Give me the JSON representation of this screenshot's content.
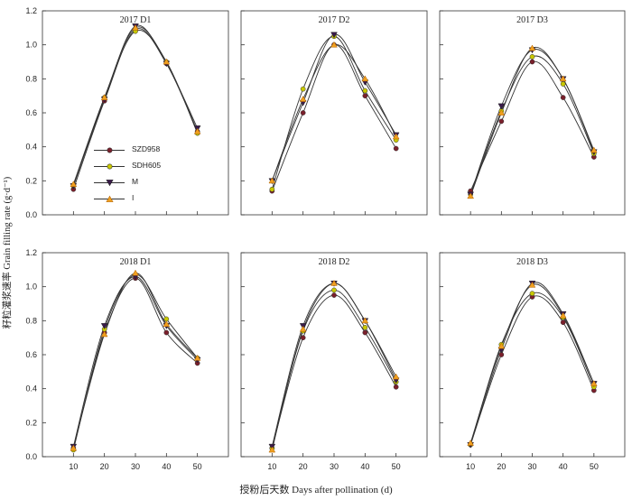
{
  "figure": {
    "ylabel": "籽粒灌浆速率 Grain filling rate (g·d⁻¹)",
    "xlabel": "授粉后天数 Days after pollination (d)"
  },
  "legend": {
    "items": [
      {
        "name": "SZD958",
        "marker": "circle",
        "color": "#7a1f2b"
      },
      {
        "name": "SDH605",
        "marker": "circle",
        "color": "#c8c800"
      },
      {
        "name": "M",
        "marker": "triangle-down",
        "color": "#3a1a4a"
      },
      {
        "name": "I",
        "marker": "triangle-up",
        "color": "#f0a020"
      }
    ]
  },
  "chart_data": [
    {
      "type": "line",
      "title": "2017 D1",
      "x": [
        10,
        20,
        30,
        40,
        50
      ],
      "ylim": [
        0,
        1.2
      ],
      "yticks": [
        0,
        0.2,
        0.4,
        0.6,
        0.8,
        1.0,
        1.2
      ],
      "series": [
        {
          "name": "SZD958",
          "values": [
            0.15,
            0.67,
            1.09,
            0.89,
            0.49
          ]
        },
        {
          "name": "SDH605",
          "values": [
            0.17,
            0.69,
            1.08,
            0.9,
            0.48
          ]
        },
        {
          "name": "M",
          "values": [
            0.17,
            0.68,
            1.11,
            0.89,
            0.51
          ]
        },
        {
          "name": "I",
          "values": [
            0.18,
            0.69,
            1.1,
            0.9,
            0.49
          ]
        }
      ]
    },
    {
      "type": "line",
      "title": "2017 D2",
      "x": [
        10,
        20,
        30,
        40,
        50
      ],
      "ylim": [
        0,
        1.2
      ],
      "yticks": [
        0,
        0.2,
        0.4,
        0.6,
        0.8,
        1.0,
        1.2
      ],
      "series": [
        {
          "name": "SZD958",
          "values": [
            0.14,
            0.6,
            1.0,
            0.7,
            0.39
          ]
        },
        {
          "name": "SDH605",
          "values": [
            0.15,
            0.74,
            1.05,
            0.73,
            0.44
          ]
        },
        {
          "name": "M",
          "values": [
            0.2,
            0.66,
            1.06,
            0.78,
            0.47
          ]
        },
        {
          "name": "I",
          "values": [
            0.2,
            0.68,
            1.0,
            0.8,
            0.46
          ]
        }
      ]
    },
    {
      "type": "line",
      "title": "2017 D3",
      "x": [
        10,
        20,
        30,
        40,
        50
      ],
      "ylim": [
        0,
        1.2
      ],
      "yticks": [
        0,
        0.2,
        0.4,
        0.6,
        0.8,
        1.0,
        1.2
      ],
      "series": [
        {
          "name": "SZD958",
          "values": [
            0.14,
            0.55,
            0.9,
            0.69,
            0.34
          ]
        },
        {
          "name": "SDH605",
          "values": [
            0.12,
            0.61,
            0.93,
            0.77,
            0.36
          ]
        },
        {
          "name": "M",
          "values": [
            0.12,
            0.64,
            0.97,
            0.8,
            0.37
          ]
        },
        {
          "name": "I",
          "values": [
            0.11,
            0.6,
            0.98,
            0.8,
            0.38
          ]
        }
      ]
    },
    {
      "type": "line",
      "title": "2018 D1",
      "x": [
        10,
        20,
        30,
        40,
        50
      ],
      "ylim": [
        0,
        1.2
      ],
      "yticks": [
        0,
        0.2,
        0.4,
        0.6,
        0.8,
        1.0,
        1.2
      ],
      "series": [
        {
          "name": "SZD958",
          "values": [
            0.05,
            0.73,
            1.05,
            0.73,
            0.55
          ]
        },
        {
          "name": "SDH605",
          "values": [
            0.04,
            0.75,
            1.07,
            0.81,
            0.58
          ]
        },
        {
          "name": "M",
          "values": [
            0.06,
            0.77,
            1.06,
            0.77,
            0.57
          ]
        },
        {
          "name": "I",
          "values": [
            0.05,
            0.72,
            1.08,
            0.78,
            0.58
          ]
        }
      ]
    },
    {
      "type": "line",
      "title": "2018 D2",
      "x": [
        10,
        20,
        30,
        40,
        50
      ],
      "ylim": [
        0,
        1.2
      ],
      "yticks": [
        0,
        0.2,
        0.4,
        0.6,
        0.8,
        1.0,
        1.2
      ],
      "series": [
        {
          "name": "SZD958",
          "values": [
            0.05,
            0.7,
            0.95,
            0.73,
            0.41
          ]
        },
        {
          "name": "SDH605",
          "values": [
            0.05,
            0.74,
            0.98,
            0.76,
            0.44
          ]
        },
        {
          "name": "M",
          "values": [
            0.06,
            0.77,
            1.02,
            0.8,
            0.45
          ]
        },
        {
          "name": "I",
          "values": [
            0.04,
            0.75,
            1.02,
            0.8,
            0.47
          ]
        }
      ]
    },
    {
      "type": "line",
      "title": "2018 D3",
      "x": [
        10,
        20,
        30,
        40,
        50
      ],
      "ylim": [
        0,
        1.2
      ],
      "yticks": [
        0,
        0.2,
        0.4,
        0.6,
        0.8,
        1.0,
        1.2
      ],
      "series": [
        {
          "name": "SZD958",
          "values": [
            0.07,
            0.6,
            0.94,
            0.79,
            0.39
          ]
        },
        {
          "name": "SDH605",
          "values": [
            0.07,
            0.66,
            0.96,
            0.82,
            0.41
          ]
        },
        {
          "name": "M",
          "values": [
            0.07,
            0.63,
            1.02,
            0.84,
            0.43
          ]
        },
        {
          "name": "I",
          "values": [
            0.08,
            0.65,
            1.01,
            0.83,
            0.43
          ]
        }
      ]
    }
  ]
}
